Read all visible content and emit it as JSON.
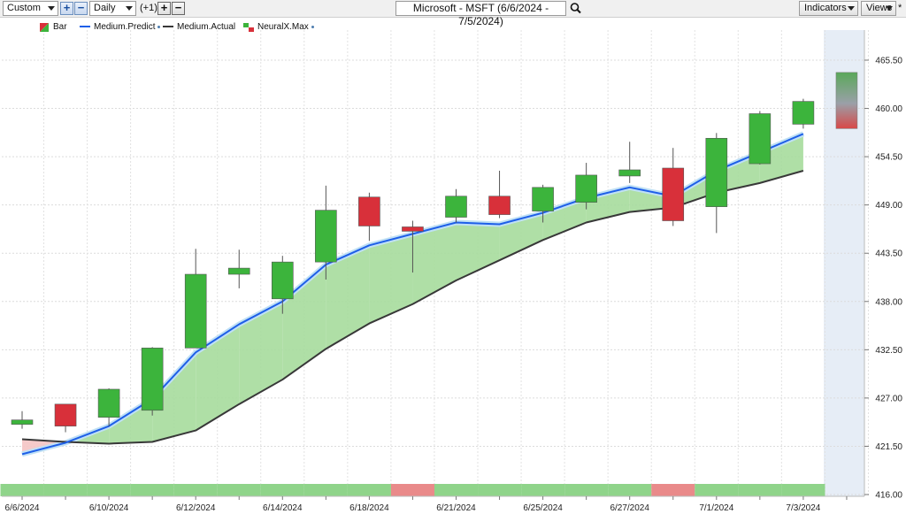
{
  "toolbar": {
    "range_combo": "Custom",
    "period_combo": "Daily",
    "offset_label": "(+1)",
    "chart_title": "Microsoft - MSFT (6/6/2024 - 7/5/2024)",
    "indicators_label": "Indicators",
    "views_label": "Views",
    "views_marker": "*"
  },
  "legend": {
    "bar": "Bar",
    "predict": "Medium.Predict",
    "actual": "Medium.Actual",
    "neural": "NeuralX.Max"
  },
  "colors": {
    "bull": "#3cb43c",
    "bear": "#d8303a",
    "predict_line": "#1e5fe8",
    "actual_line": "#383838",
    "fill_up": "#a6dc9c",
    "fill_down": "#f4c4c4",
    "forecast_band": "#e6edf6"
  },
  "chart_data": {
    "type": "candlestick",
    "title": "Microsoft - MSFT (6/6/2024 - 7/5/2024)",
    "ylim": [
      416,
      468.5
    ],
    "y_ticks": [
      "465.50",
      "460.00",
      "454.50",
      "449.00",
      "443.50",
      "438.00",
      "432.50",
      "427.00",
      "421.50",
      "416.00"
    ],
    "x_tick_labels": [
      {
        "i": 0,
        "label": "6/6/2024"
      },
      {
        "i": 2,
        "label": "6/10/2024"
      },
      {
        "i": 4,
        "label": "6/12/2024"
      },
      {
        "i": 6,
        "label": "6/14/2024"
      },
      {
        "i": 8,
        "label": "6/18/2024"
      },
      {
        "i": 10,
        "label": "6/21/2024"
      },
      {
        "i": 12,
        "label": "6/25/2024"
      },
      {
        "i": 14,
        "label": "6/27/2024"
      },
      {
        "i": 16,
        "label": "7/1/2024"
      },
      {
        "i": 18,
        "label": "7/3/2024"
      }
    ],
    "candles": [
      {
        "o": 424.0,
        "h": 425.5,
        "l": 423.5,
        "c": 424.5
      },
      {
        "o": 426.3,
        "h": 426.3,
        "l": 423.1,
        "c": 423.8
      },
      {
        "o": 424.8,
        "h": 428.1,
        "l": 423.8,
        "c": 428.0
      },
      {
        "o": 425.6,
        "h": 432.8,
        "l": 425.0,
        "c": 432.7
      },
      {
        "o": 432.7,
        "h": 444.0,
        "l": 432.8,
        "c": 441.1
      },
      {
        "o": 441.1,
        "h": 443.9,
        "l": 439.5,
        "c": 441.8
      },
      {
        "o": 438.3,
        "h": 443.2,
        "l": 436.6,
        "c": 442.5
      },
      {
        "o": 442.5,
        "h": 451.2,
        "l": 440.5,
        "c": 448.4
      },
      {
        "o": 449.9,
        "h": 450.4,
        "l": 444.9,
        "c": 446.6
      },
      {
        "o": 446.5,
        "h": 447.2,
        "l": 441.3,
        "c": 446.0
      },
      {
        "o": 447.6,
        "h": 450.8,
        "l": 447.0,
        "c": 450.0
      },
      {
        "o": 450.0,
        "h": 452.9,
        "l": 447.5,
        "c": 447.9
      },
      {
        "o": 448.3,
        "h": 451.3,
        "l": 447.0,
        "c": 451.0
      },
      {
        "o": 449.3,
        "h": 453.8,
        "l": 448.5,
        "c": 452.4
      },
      {
        "o": 452.3,
        "h": 456.2,
        "l": 451.5,
        "c": 453.0
      },
      {
        "o": 453.2,
        "h": 455.5,
        "l": 446.6,
        "c": 447.2
      },
      {
        "o": 448.8,
        "h": 457.2,
        "l": 445.8,
        "c": 456.6
      },
      {
        "o": 453.7,
        "h": 459.7,
        "l": 453.6,
        "c": 459.4
      },
      {
        "o": 458.2,
        "h": 461.1,
        "l": 457.7,
        "c": 460.8
      }
    ],
    "forecast_bar": {
      "top": 464.1,
      "bottom": 457.7
    },
    "series": [
      {
        "name": "Medium.Predict",
        "values": [
          420.6,
          421.9,
          423.8,
          426.9,
          432.2,
          435.4,
          438.0,
          442.2,
          444.4,
          445.7,
          447.0,
          446.8,
          448.1,
          449.8,
          451.0,
          450.0,
          452.9,
          455.0,
          457.1
        ]
      },
      {
        "name": "Medium.Actual",
        "values": [
          422.3,
          422.0,
          421.8,
          422.0,
          423.3,
          426.3,
          429.1,
          432.6,
          435.5,
          437.7,
          440.4,
          442.7,
          445.0,
          447.0,
          448.2,
          448.7,
          450.4,
          451.5,
          452.9
        ]
      }
    ],
    "signals": [
      "up",
      "up",
      "up",
      "up",
      "up",
      "up",
      "up",
      "up",
      "up",
      "down",
      "up",
      "up",
      "up",
      "up",
      "up",
      "down",
      "up",
      "up",
      "up"
    ]
  }
}
